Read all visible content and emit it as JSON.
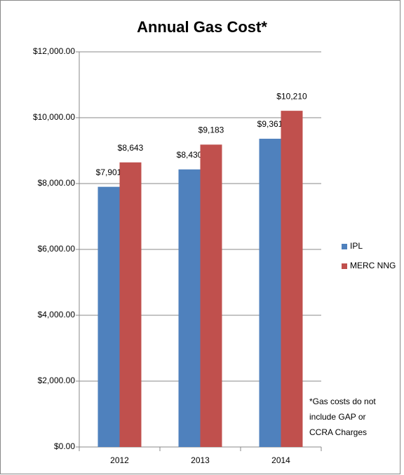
{
  "chart_data": {
    "type": "bar",
    "title": "Annual Gas Cost*",
    "categories": [
      "2012",
      "2013",
      "2014"
    ],
    "series": [
      {
        "name": "IPL",
        "color": "#4f81bd",
        "values": [
          7901,
          8430,
          9361
        ],
        "value_labels": [
          "$7,901",
          "$8,430",
          "$9,361"
        ]
      },
      {
        "name": "MERC NNG",
        "color": "#c0504d",
        "values": [
          8643,
          9183,
          10210
        ],
        "value_labels": [
          "$8,643",
          "$9,183",
          "$10,210"
        ]
      }
    ],
    "ylim": [
      0,
      12000
    ],
    "yticks": [
      {
        "value": 0,
        "label": "$0.00"
      },
      {
        "value": 2000,
        "label": "$2,000.00"
      },
      {
        "value": 4000,
        "label": "$4,000.00"
      },
      {
        "value": 6000,
        "label": "$6,000.00"
      },
      {
        "value": 8000,
        "label": "$8,000.00"
      },
      {
        "value": 10000,
        "label": "$10,000.00"
      },
      {
        "value": 12000,
        "label": "$12,000.00"
      }
    ],
    "grid": true,
    "legend": "right",
    "annotation": [
      "*Gas costs do not",
      "include GAP or",
      "CCRA Charges"
    ]
  }
}
